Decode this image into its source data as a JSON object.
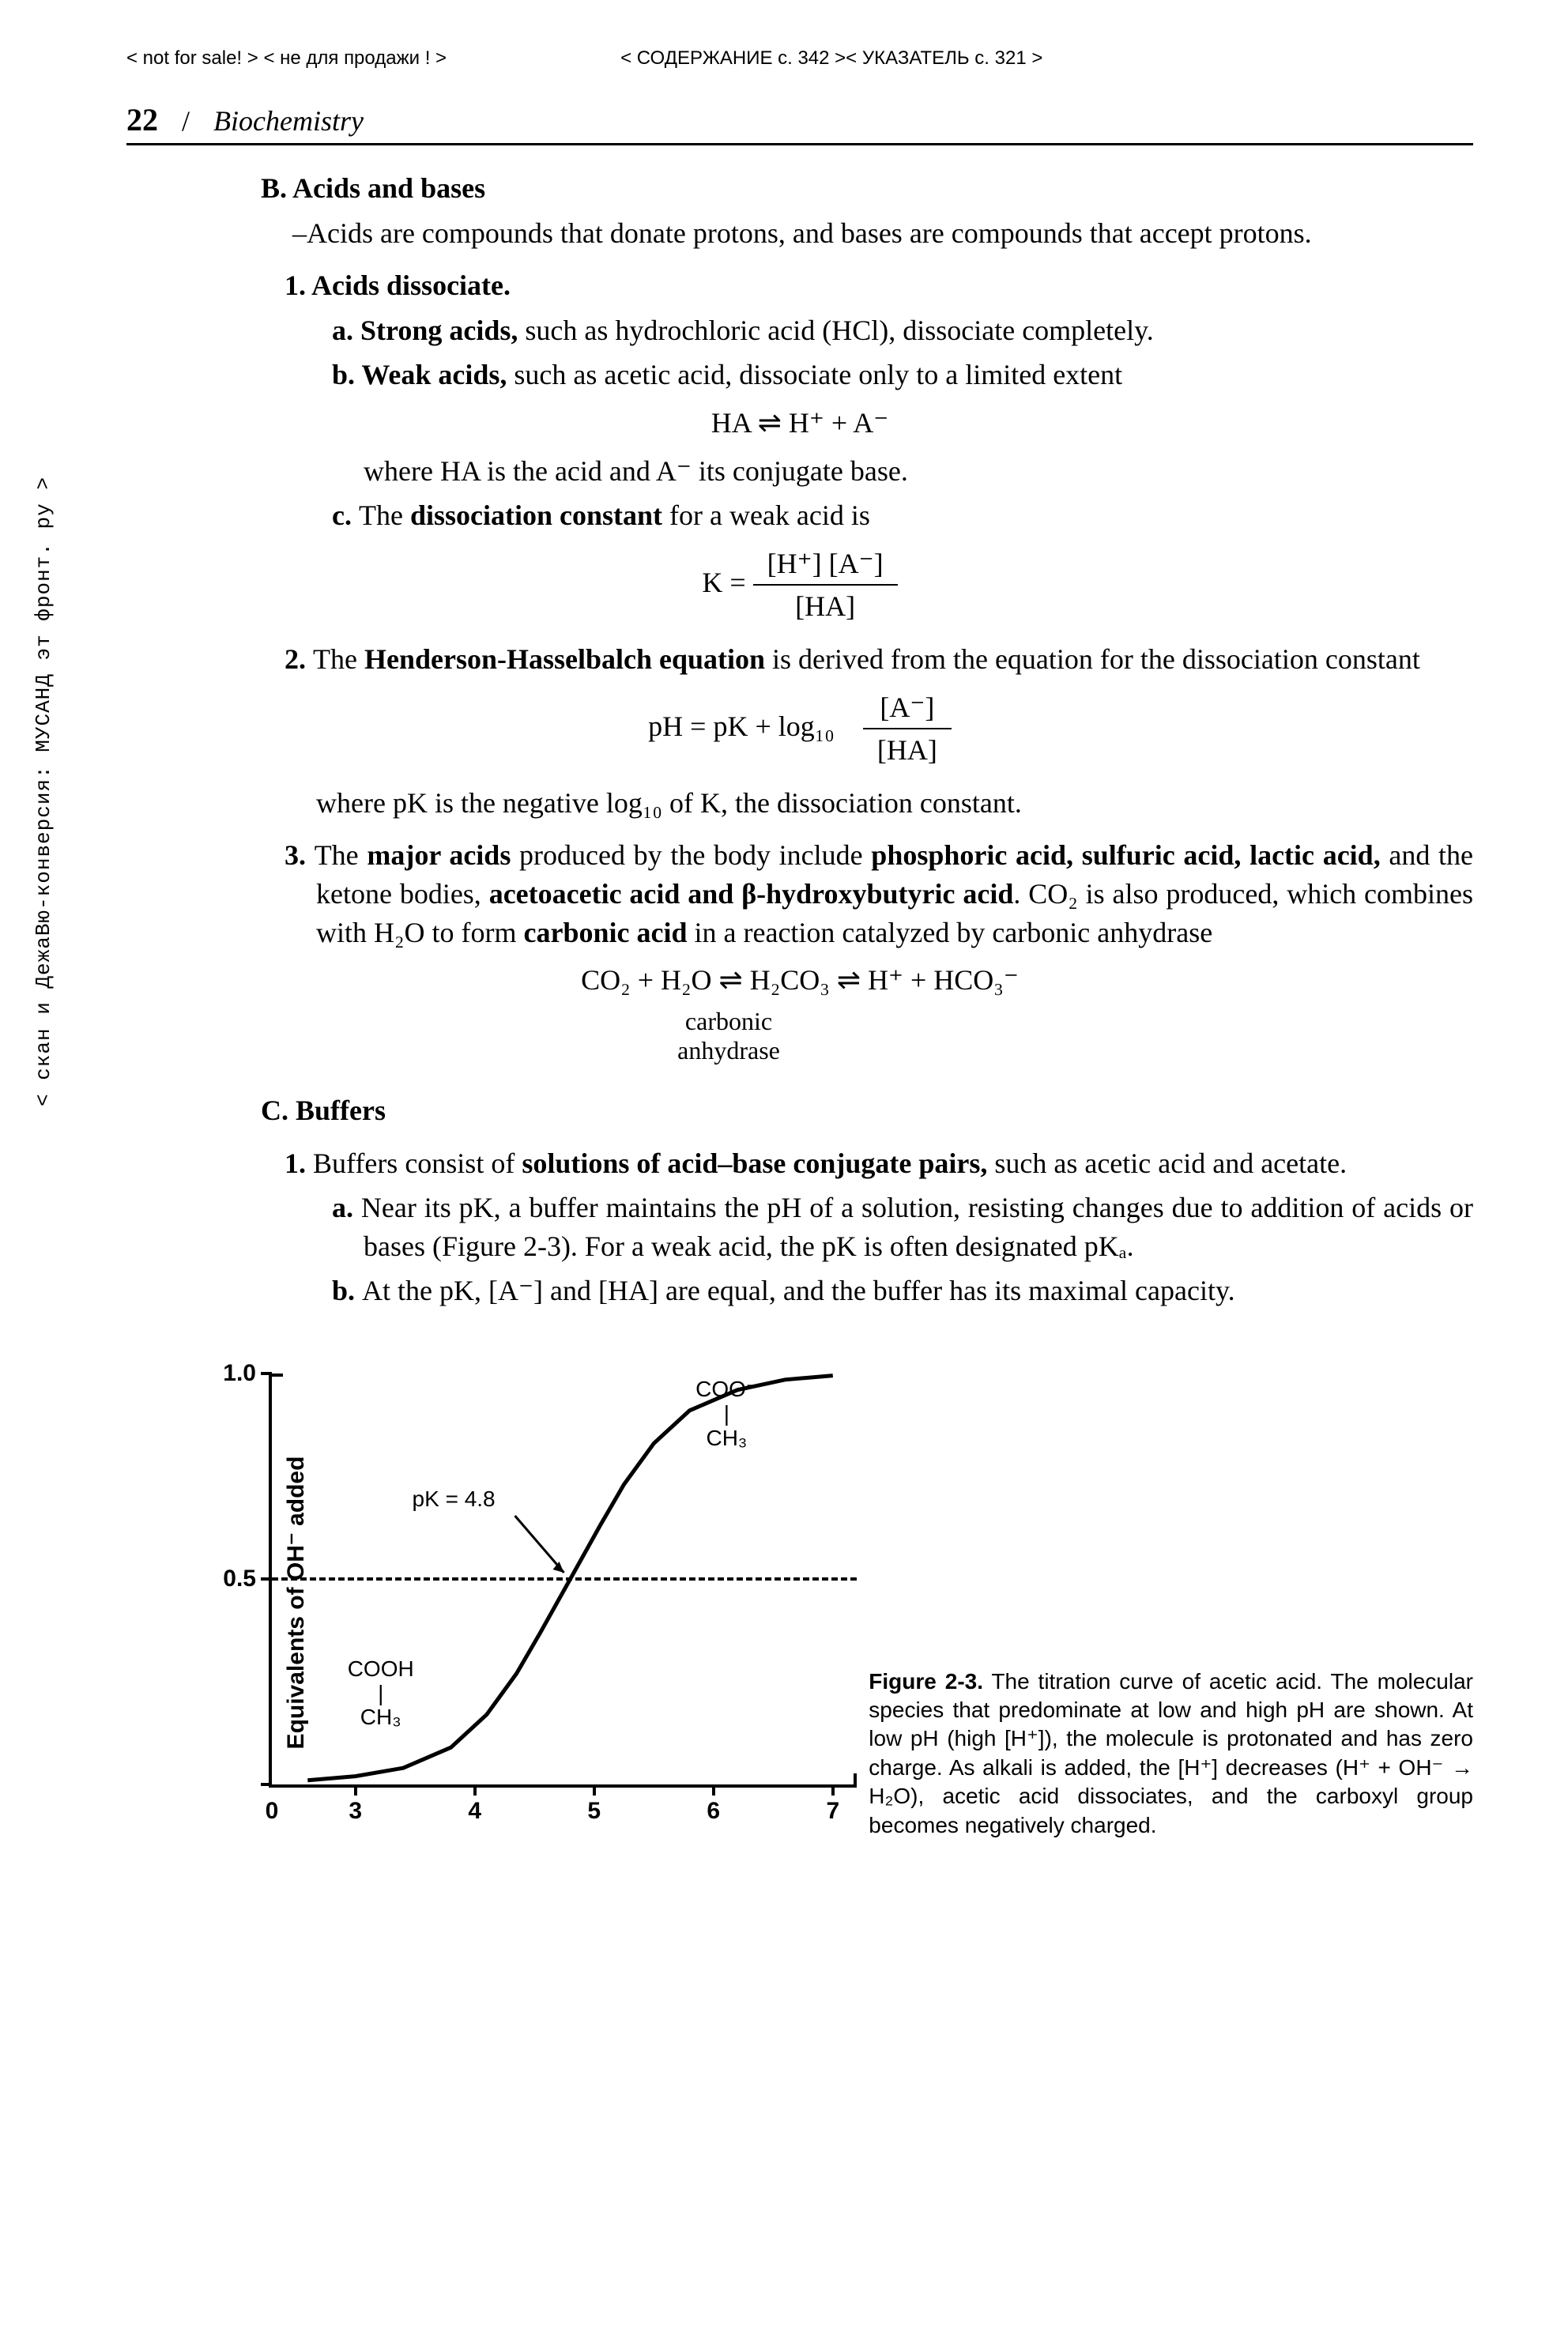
{
  "top": {
    "left": "< not for sale! > < не для продажи ! >",
    "right": "< СОДЕРЖАНИЕ с. 342 >< УКАЗАТЕЛЬ с. 321 >"
  },
  "header": {
    "page_number": "22",
    "slash": "/",
    "chapter": "Biochemistry"
  },
  "side_text": "< скан и ДежаВю-конверсия: МУСАНД эт фронт. ру >",
  "sectionB": {
    "title": "B. Acids and bases",
    "intro": "–Acids are compounds that donate protons, and bases are compounds that accept protons.",
    "item1": {
      "heading_prefix": "1. ",
      "heading_bold": "Acids dissociate.",
      "a_prefix": "a. ",
      "a_bold": "Strong acids,",
      "a_rest": " such as hydrochloric acid (HCl), dissociate completely.",
      "b_prefix": "b. ",
      "b_bold": "Weak acids,",
      "b_rest": " such as acetic acid, dissociate only to a limited extent",
      "eq1": "HA  ⇌  H⁺ + A⁻",
      "b_cont": "where HA is the acid and A⁻ its conjugate base.",
      "c_prefix": "c. ",
      "c_text_before": "The ",
      "c_bold": "dissociation constant",
      "c_text_after": " for a weak acid is",
      "eq2_lhs": "K = ",
      "eq2_num": "[H⁺] [A⁻]",
      "eq2_den": "[HA]"
    },
    "item2": {
      "prefix": "2. ",
      "before": "The ",
      "bold": "Henderson-Hasselbalch equation",
      "after": " is derived from the equation for the dissociation constant",
      "eq_lhs": "pH = pK + log₁₀",
      "eq_num": "[A⁻]",
      "eq_den": "[HA]",
      "tail": "where pK is the negative log₁₀ of K, the dissociation constant."
    },
    "item3": {
      "prefix": "3. ",
      "t1": "The ",
      "b1": "major acids",
      "t2": " produced by the body include ",
      "b2": "phosphoric acid, sulfuric acid, lactic acid,",
      "t3": " and the ketone bodies, ",
      "b3": "acetoacetic acid and β-hydroxybutyric acid",
      "t4": ". CO₂ is also produced, which combines with H₂O to form ",
      "b4": "carbonic acid",
      "t5": " in a reaction catalyzed by carbonic anhydrase",
      "eq": "CO₂ + H₂O   ⇌   H₂CO₃   ⇌   H⁺  +  HCO₃⁻",
      "eq_label1": "carbonic",
      "eq_label2": "anhydrase"
    }
  },
  "sectionC": {
    "title": "C. Buffers",
    "item1": {
      "prefix": "1. ",
      "t1": "Buffers consist of ",
      "b1": "solutions of acid–base conjugate pairs,",
      "t2": " such as acetic acid and acetate.",
      "a_prefix": "a. ",
      "a_text": "Near its pK, a buffer maintains the pH of a solution, resisting changes due to addition of acids or bases (Figure 2-3). For a weak acid, the pK is often designated pKₐ.",
      "b_prefix": "b. ",
      "b_text": "At the pK, [A⁻] and [HA] are equal, and the buffer has its maximal capacity."
    }
  },
  "figure": {
    "y_axis_label": "Equivalents of OH⁻ added",
    "y_ticks": [
      {
        "v": 0,
        "label": "0"
      },
      {
        "v": 0.5,
        "label": "0.5"
      },
      {
        "v": 1.0,
        "label": "1.0"
      }
    ],
    "x_ticks": [
      {
        "v": 3,
        "label": "3"
      },
      {
        "v": 4,
        "label": "4"
      },
      {
        "v": 5,
        "label": "5"
      },
      {
        "v": 6,
        "label": "6"
      },
      {
        "v": 7,
        "label": "7"
      }
    ],
    "xlim": [
      2.3,
      7.2
    ],
    "ylim": [
      0,
      1.0
    ],
    "pk_label": "pK = 4.8",
    "pk_x": 4.8,
    "pk_y": 0.5,
    "low_species_line1": "COOH",
    "low_species_line2": "|",
    "low_species_line3": "CH₃",
    "high_species_line1": "COO⁻",
    "high_species_line2": "|",
    "high_species_line3": "CH₃",
    "curve": [
      {
        "x": 2.6,
        "y": 0.01
      },
      {
        "x": 3.0,
        "y": 0.02
      },
      {
        "x": 3.4,
        "y": 0.04
      },
      {
        "x": 3.8,
        "y": 0.09
      },
      {
        "x": 4.1,
        "y": 0.17
      },
      {
        "x": 4.35,
        "y": 0.27
      },
      {
        "x": 4.55,
        "y": 0.37
      },
      {
        "x": 4.8,
        "y": 0.5
      },
      {
        "x": 5.05,
        "y": 0.63
      },
      {
        "x": 5.25,
        "y": 0.73
      },
      {
        "x": 5.5,
        "y": 0.83
      },
      {
        "x": 5.8,
        "y": 0.91
      },
      {
        "x": 6.2,
        "y": 0.96
      },
      {
        "x": 6.6,
        "y": 0.985
      },
      {
        "x": 7.0,
        "y": 0.995
      }
    ],
    "line_width": 5,
    "line_color": "#000000",
    "caption_label": "Figure 2-3.",
    "caption_text": " The titration curve of acetic acid. The molecular species that predominate at low and high pH are shown. At low pH (high [H⁺]), the molecule is protonated and has zero charge. As alkali is added, the [H⁺] decreases (H⁺ + OH⁻ → H₂O), acetic acid dissociates, and the carboxyl group becomes negatively charged."
  }
}
